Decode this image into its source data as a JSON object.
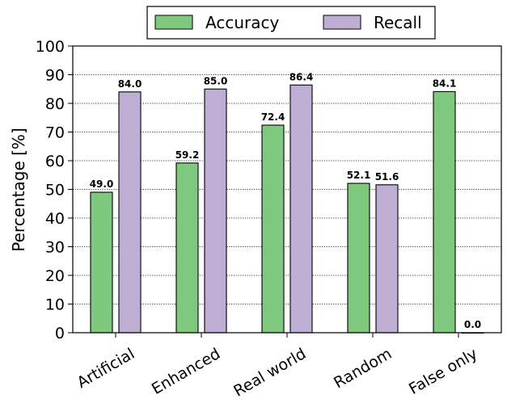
{
  "chart_data": {
    "type": "bar",
    "categories": [
      "Artificial",
      "Enhanced",
      "Real world",
      "Random",
      "False only"
    ],
    "series": [
      {
        "name": "Accuracy",
        "values": [
          49.0,
          59.2,
          72.4,
          52.1,
          84.1
        ],
        "color": "#7fc97f"
      },
      {
        "name": "Recall",
        "values": [
          84.0,
          85.0,
          86.4,
          51.6,
          0.0
        ],
        "color": "#beaed4"
      }
    ],
    "data_labels": [
      [
        "49.0",
        "59.2",
        "72.4",
        "52.1",
        "84.1"
      ],
      [
        "84.0",
        "85.0",
        "86.4",
        "51.6",
        "0.0"
      ]
    ],
    "xlabel": "",
    "ylabel": "Percentage [%]",
    "ylim": [
      0,
      100
    ],
    "yticks": [
      "0",
      "10",
      "20",
      "30",
      "40",
      "50",
      "60",
      "70",
      "80",
      "90",
      "100"
    ],
    "grid": "horizontal dotted",
    "legend": "top-center"
  }
}
